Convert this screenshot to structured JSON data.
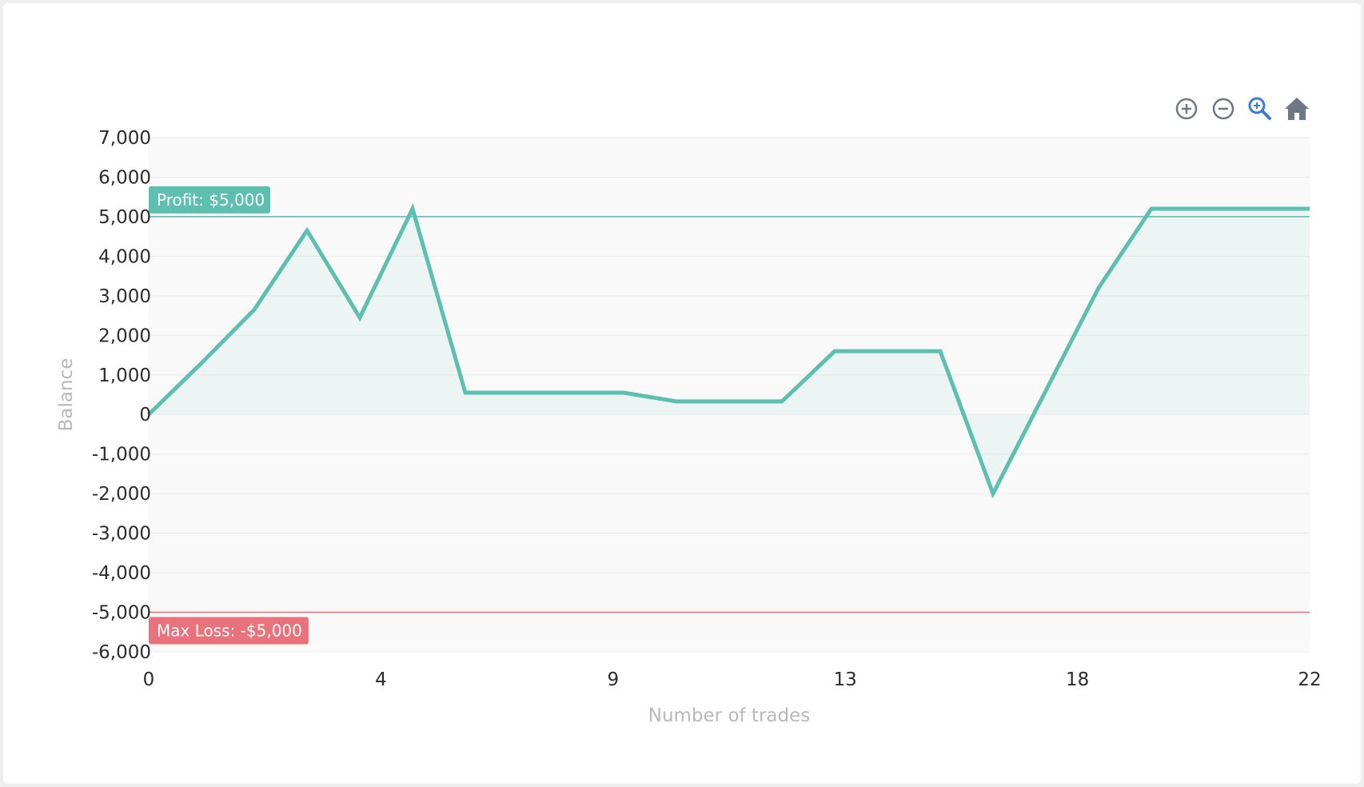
{
  "chart_data": {
    "type": "area",
    "xlabel": "Number of trades",
    "ylabel": "Balance",
    "xlim": [
      0,
      22
    ],
    "ylim": [
      -6000,
      7000
    ],
    "x_ticks": [
      "0",
      "4",
      "9",
      "13",
      "18",
      "22"
    ],
    "x_tick_values": [
      0,
      4.4,
      8.8,
      13.2,
      17.6,
      22
    ],
    "y_ticks": [
      "7,000",
      "6,000",
      "5,000",
      "4,000",
      "3,000",
      "2,000",
      "1,000",
      "0",
      "-1,000",
      "-2,000",
      "-3,000",
      "-4,000",
      "-5,000",
      "-6,000"
    ],
    "y_tick_values": [
      7000,
      6000,
      5000,
      4000,
      3000,
      2000,
      1000,
      0,
      -1000,
      -2000,
      -3000,
      -4000,
      -5000,
      -6000
    ],
    "grid": true,
    "series": [
      {
        "color": "#5cbfb0",
        "x": [
          0,
          1,
          2,
          3,
          4,
          5,
          6,
          7,
          8,
          9,
          10,
          11,
          12,
          13,
          14,
          15,
          16,
          17,
          18,
          19,
          20,
          21,
          22
        ],
        "y": [
          0,
          1300,
          2650,
          4650,
          2450,
          5200,
          550,
          550,
          550,
          550,
          330,
          330,
          330,
          1600,
          1600,
          1600,
          -2000,
          600,
          3200,
          5200,
          5200,
          5200,
          5200
        ]
      }
    ],
    "annotations": [
      {
        "label": "Profit: $5,000",
        "y": 5000,
        "color": "#5cbfb0"
      },
      {
        "label": "Max Loss: -$5,000",
        "y": -5000,
        "color": "#e8737c"
      }
    ]
  },
  "toolbar": {
    "icons": [
      "zoom-in-icon",
      "zoom-out-icon",
      "magnifier-icon",
      "home-icon"
    ],
    "active_color": "#3a7bd5",
    "icon_color": "#6e7785"
  }
}
